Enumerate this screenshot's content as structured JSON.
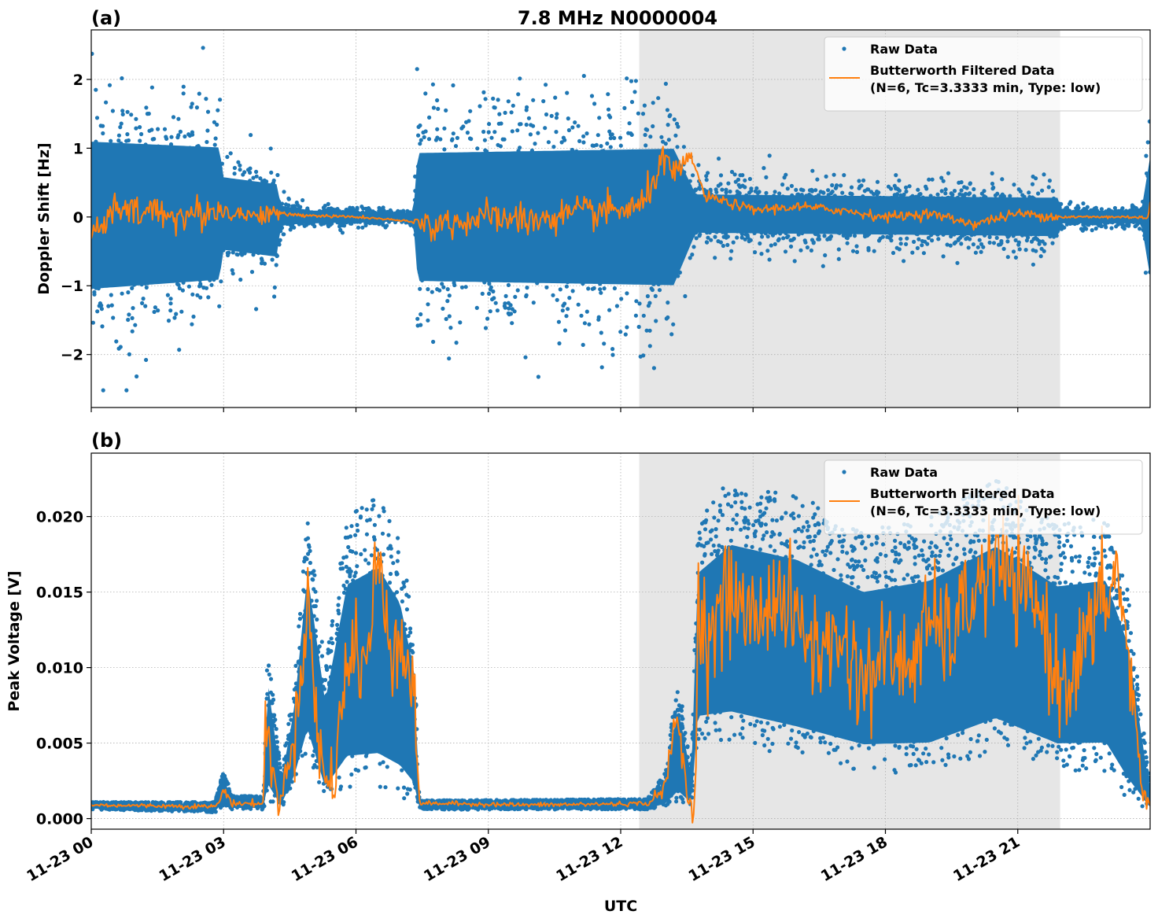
{
  "chart_data": [
    {
      "panel": "(a)",
      "type": "scatter",
      "title": "7.8 MHz N0000004",
      "xlabel": "",
      "ylabel": "Doppler Shift [Hz]",
      "xlim_hours": [
        0,
        24
      ],
      "ylim": [
        -2.77,
        2.72
      ],
      "yticks": [
        -2,
        -1,
        0,
        1,
        2
      ],
      "ytick_labels": [
        "−2",
        "−1",
        "0",
        "1",
        "2"
      ],
      "xticks_hours": [
        0,
        3,
        6,
        9,
        12,
        15,
        18,
        21
      ],
      "grid": true,
      "legend_position": "top-right",
      "shaded_interval_hours": [
        12.42,
        21.96
      ],
      "series": [
        {
          "name": "Raw Data",
          "kind": "points",
          "color": "#1f77b4",
          "envelope": [
            {
              "x": 0.0,
              "lo": -1.7,
              "hi": 1.75
            },
            {
              "x": 2.9,
              "lo": -1.5,
              "hi": 1.6
            },
            {
              "x": 3.0,
              "lo": -0.8,
              "hi": 0.9
            },
            {
              "x": 4.2,
              "lo": -0.9,
              "hi": 0.8
            },
            {
              "x": 4.3,
              "lo": -0.2,
              "hi": 0.25
            },
            {
              "x": 5.0,
              "lo": -0.15,
              "hi": 0.15
            },
            {
              "x": 7.3,
              "lo": -0.1,
              "hi": 0.1
            },
            {
              "x": 7.4,
              "lo": -1.5,
              "hi": 1.5
            },
            {
              "x": 13.2,
              "lo": -1.6,
              "hi": 1.6
            },
            {
              "x": 13.7,
              "lo": -0.4,
              "hi": 0.5
            },
            {
              "x": 21.9,
              "lo": -0.45,
              "hi": 0.45
            },
            {
              "x": 22.0,
              "lo": -0.15,
              "hi": 0.15
            },
            {
              "x": 23.8,
              "lo": -0.15,
              "hi": 0.15
            },
            {
              "x": 24.0,
              "lo": -1.4,
              "hi": 1.4
            }
          ],
          "max": 2.47,
          "min": -2.52
        },
        {
          "name": "Butterworth Filtered Data",
          "kind": "line",
          "color": "#ff7f0e",
          "points": [
            [
              0,
              -0.3
            ],
            [
              0.5,
              0.1
            ],
            [
              1,
              0.05
            ],
            [
              1.5,
              0.1
            ],
            [
              2,
              0.0
            ],
            [
              2.5,
              0.05
            ],
            [
              3,
              0.1
            ],
            [
              3.5,
              0.02
            ],
            [
              4,
              0.05
            ],
            [
              5,
              0.02
            ],
            [
              6,
              0.0
            ],
            [
              7,
              -0.05
            ],
            [
              7.5,
              -0.1
            ],
            [
              8,
              -0.1
            ],
            [
              9,
              0.0
            ],
            [
              10,
              -0.05
            ],
            [
              11,
              0.05
            ],
            [
              12,
              0.1
            ],
            [
              12.5,
              0.15
            ],
            [
              12.9,
              0.8
            ],
            [
              13.3,
              0.6
            ],
            [
              13.6,
              0.9
            ],
            [
              13.9,
              0.3
            ],
            [
              14.5,
              0.2
            ],
            [
              15,
              0.1
            ],
            [
              16,
              0.15
            ],
            [
              17,
              0.1
            ],
            [
              18,
              0.0
            ],
            [
              19,
              0.05
            ],
            [
              20,
              -0.1
            ],
            [
              21,
              0.05
            ],
            [
              22,
              0.0
            ],
            [
              23,
              0.0
            ],
            [
              23.9,
              0.0
            ],
            [
              24,
              0.1
            ]
          ]
        }
      ],
      "legend": {
        "entries": [
          {
            "label": "Raw Data",
            "marker": "point"
          },
          {
            "label": "Butterworth Filtered Data",
            "label2": "(N=6, Tc=3.3333 min, Type: low)",
            "marker": "line"
          }
        ]
      }
    },
    {
      "panel": "(b)",
      "type": "scatter",
      "title": "",
      "xlabel": "UTC",
      "ylabel": "Peak Voltage [V]",
      "xlim_hours": [
        0,
        24
      ],
      "ylim": [
        -0.0007,
        0.0242
      ],
      "yticks": [
        0.0,
        0.005,
        0.01,
        0.015,
        0.02
      ],
      "ytick_labels": [
        "0.000",
        "0.005",
        "0.010",
        "0.015",
        "0.020"
      ],
      "xticks_hours": [
        0,
        3,
        6,
        9,
        12,
        15,
        18,
        21
      ],
      "xtick_labels": [
        "11-23 00",
        "11-23 03",
        "11-23 06",
        "11-23 09",
        "11-23 12",
        "11-23 15",
        "11-23 18",
        "11-23 21"
      ],
      "grid": true,
      "legend_position": "top-right",
      "shaded_interval_hours": [
        12.42,
        21.96
      ],
      "series": [
        {
          "name": "Raw Data",
          "kind": "points",
          "color": "#1f77b4",
          "envelope": [
            {
              "x": 0.0,
              "lo": 0.0006,
              "hi": 0.0011
            },
            {
              "x": 2.8,
              "lo": 0.0004,
              "hi": 0.0011
            },
            {
              "x": 3.0,
              "lo": 0.0008,
              "hi": 0.0032
            },
            {
              "x": 3.2,
              "lo": 0.0006,
              "hi": 0.0015
            },
            {
              "x": 3.9,
              "lo": 0.0006,
              "hi": 0.0015
            },
            {
              "x": 4.0,
              "lo": 0.001,
              "hi": 0.0118
            },
            {
              "x": 4.3,
              "lo": 0.0006,
              "hi": 0.003
            },
            {
              "x": 4.6,
              "lo": 0.002,
              "hi": 0.009
            },
            {
              "x": 4.9,
              "lo": 0.004,
              "hi": 0.0203
            },
            {
              "x": 5.3,
              "lo": 0.001,
              "hi": 0.01
            },
            {
              "x": 5.8,
              "lo": 0.002,
              "hi": 0.02
            },
            {
              "x": 6.5,
              "lo": 0.002,
              "hi": 0.0215
            },
            {
              "x": 7.0,
              "lo": 0.0015,
              "hi": 0.0185
            },
            {
              "x": 7.3,
              "lo": 0.001,
              "hi": 0.013
            },
            {
              "x": 7.45,
              "lo": 0.0006,
              "hi": 0.0012
            },
            {
              "x": 12.6,
              "lo": 0.0006,
              "hi": 0.0013
            },
            {
              "x": 13.0,
              "lo": 0.0007,
              "hi": 0.003
            },
            {
              "x": 13.3,
              "lo": 0.0008,
              "hi": 0.0095
            },
            {
              "x": 13.6,
              "lo": 0.0007,
              "hi": 0.0035
            },
            {
              "x": 13.75,
              "lo": 0.005,
              "hi": 0.02
            },
            {
              "x": 14.5,
              "lo": 0.005,
              "hi": 0.0225
            },
            {
              "x": 16.0,
              "lo": 0.004,
              "hi": 0.0215
            },
            {
              "x": 17.5,
              "lo": 0.003,
              "hi": 0.019
            },
            {
              "x": 19.0,
              "lo": 0.003,
              "hi": 0.02
            },
            {
              "x": 20.5,
              "lo": 0.0045,
              "hi": 0.0225
            },
            {
              "x": 21.9,
              "lo": 0.003,
              "hi": 0.0195
            },
            {
              "x": 23.0,
              "lo": 0.003,
              "hi": 0.02
            },
            {
              "x": 23.5,
              "lo": 0.001,
              "hi": 0.015
            },
            {
              "x": 24.0,
              "lo": 0.0006,
              "hi": 0.002
            }
          ],
          "max": 0.0231,
          "min": 0.0003
        },
        {
          "name": "Butterworth Filtered Data",
          "kind": "line",
          "color": "#ff7f0e",
          "points": [
            [
              0,
              0.0009
            ],
            [
              2.8,
              0.0008
            ],
            [
              3.05,
              0.0018
            ],
            [
              3.2,
              0.001
            ],
            [
              3.9,
              0.001
            ],
            [
              3.95,
              0.007
            ],
            [
              4.1,
              0.003
            ],
            [
              4.25,
              0.001
            ],
            [
              4.6,
              0.005
            ],
            [
              4.9,
              0.015
            ],
            [
              5.1,
              0.006
            ],
            [
              5.4,
              0.0015
            ],
            [
              5.7,
              0.008
            ],
            [
              6.0,
              0.012
            ],
            [
              6.2,
              0.0095
            ],
            [
              6.5,
              0.017
            ],
            [
              6.8,
              0.012
            ],
            [
              7.05,
              0.012
            ],
            [
              7.3,
              0.008
            ],
            [
              7.45,
              0.001
            ],
            [
              8,
              0.001
            ],
            [
              10,
              0.0009
            ],
            [
              12.6,
              0.001
            ],
            [
              13.0,
              0.002
            ],
            [
              13.3,
              0.007
            ],
            [
              13.5,
              0.0012
            ],
            [
              13.7,
              0.0015
            ],
            [
              13.75,
              0.014
            ],
            [
              14.0,
              0.012
            ],
            [
              14.5,
              0.015
            ],
            [
              15,
              0.013
            ],
            [
              15.5,
              0.015
            ],
            [
              16,
              0.013
            ],
            [
              16.5,
              0.011
            ],
            [
              17,
              0.012
            ],
            [
              17.5,
              0.009
            ],
            [
              18,
              0.011
            ],
            [
              18.5,
              0.01
            ],
            [
              19,
              0.013
            ],
            [
              19.5,
              0.012
            ],
            [
              20,
              0.015
            ],
            [
              20.5,
              0.017
            ],
            [
              21,
              0.015
            ],
            [
              21.5,
              0.014
            ],
            [
              21.9,
              0.009
            ],
            [
              22.3,
              0.01
            ],
            [
              22.6,
              0.012
            ],
            [
              23,
              0.015
            ],
            [
              23.3,
              0.016
            ],
            [
              23.6,
              0.008
            ],
            [
              23.8,
              0.002
            ],
            [
              24,
              0.0011
            ]
          ]
        }
      ],
      "legend": {
        "entries": [
          {
            "label": "Raw Data",
            "marker": "point"
          },
          {
            "label": "Butterworth Filtered Data",
            "label2": "(N=6, Tc=3.3333 min, Type: low)",
            "marker": "line"
          }
        ]
      }
    }
  ],
  "figure": {
    "title": "7.8 MHz N0000004",
    "panel_a_label": "(a)",
    "panel_b_label": "(b)",
    "shade_color": "#e6e6e6",
    "raw_color": "#1f77b4",
    "filtered_color": "#ff7f0e"
  }
}
